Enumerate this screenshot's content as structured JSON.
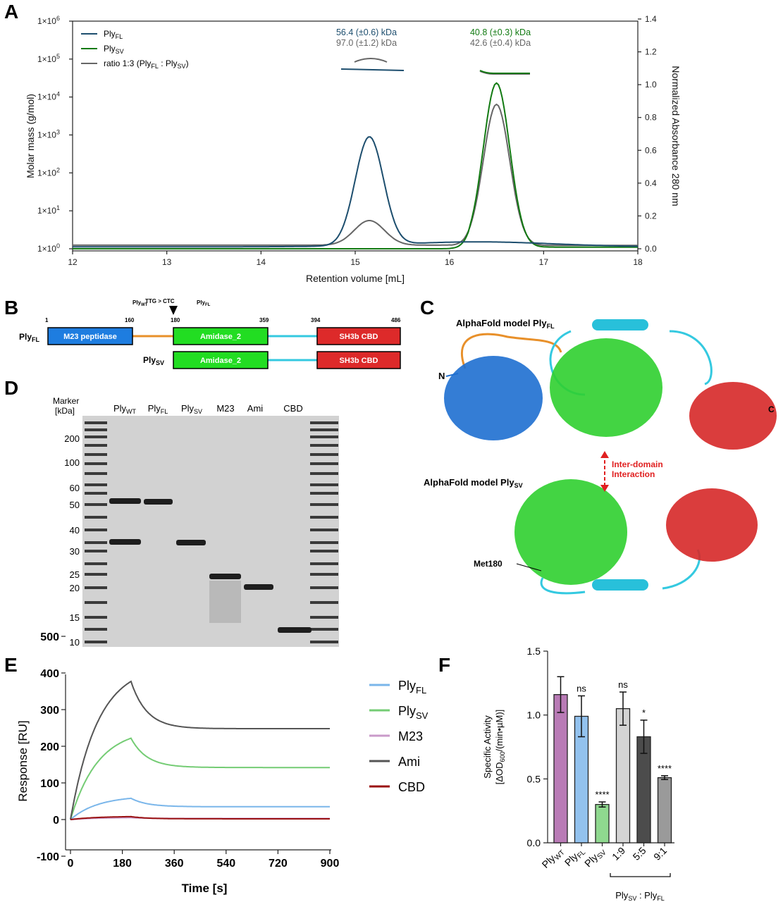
{
  "panel_labels": {
    "a": "A",
    "b": "B",
    "c": "C",
    "d": "D",
    "e": "E",
    "f": "F"
  },
  "panelA": {
    "xlabel": "Retention volume [mL]",
    "ylabel_left": "Molar mass (g/mol)",
    "ylabel_right": "Normalized Absorbance 280 nm",
    "x_ticks": [
      "12",
      "13",
      "14",
      "15",
      "16",
      "17",
      "18"
    ],
    "y_left_ticks": [
      "1×10",
      "1×10",
      "1×10",
      "1×10",
      "1×10",
      "1×10",
      "1×10"
    ],
    "y_left_exps": [
      "0",
      "1",
      "2",
      "3",
      "4",
      "5",
      "6"
    ],
    "y_right_ticks": [
      "0.0",
      "0.2",
      "0.4",
      "0.6",
      "0.8",
      "1.0",
      "1.2",
      "1.4"
    ],
    "legend": [
      {
        "name": "Ply",
        "sub": "FL",
        "color": "#1d4e6e"
      },
      {
        "name": "Ply",
        "sub": "SV",
        "color": "#127a12"
      },
      {
        "name": "ratio 1:3 (Ply",
        "sub": "FL",
        "mid": " : Ply",
        "sub2": "SV",
        "end": ")",
        "color": "#666666"
      }
    ],
    "annotations": {
      "peak1_fl": "56.4 (±0.6) kDa",
      "peak1_ratio": "97.0 (±1.2) kDa",
      "peak2_sv": "40.8 (±0.3) kDa",
      "peak2_ratio": "42.6 (±0.4) kDa"
    },
    "colors": {
      "fl": "#1d4e6e",
      "sv": "#127a12",
      "ratio": "#666666"
    }
  },
  "panelB": {
    "row1_label": "Ply",
    "row1_sub": "FL",
    "row2_label": "Ply",
    "row2_sub": "SV",
    "mutation": {
      "left": "Ply",
      "left_sub": "WT",
      "middle": "TTG > CTC",
      "right": "Ply",
      "right_sub": "FL"
    },
    "positions": [
      "1",
      "160",
      "180",
      "359",
      "394",
      "486"
    ],
    "domains": [
      {
        "label": "M23 peptidase",
        "color": "#1e7de0"
      },
      {
        "label": "Amidase_2",
        "color": "#22dd22"
      },
      {
        "label": "SH3b CBD",
        "color": "#dd2a2a"
      }
    ],
    "linker_colors": {
      "first": "#e8902a",
      "second": "#34c9e0"
    }
  },
  "panelC": {
    "title_fl": "AlphaFold model Ply",
    "title_fl_sub": "FL",
    "title_sv": "AlphaFold model Ply",
    "title_sv_sub": "SV",
    "n_term": "N",
    "c_term": "C",
    "interaction_line1": "Inter-domain",
    "interaction_line2": "Interaction",
    "met_label": "Met180"
  },
  "panelD": {
    "marker_header1": "Marker",
    "marker_header2": "[kDa]",
    "marker_values": [
      "200",
      "100",
      "60",
      "50",
      "40",
      "30",
      "25",
      "20",
      "15",
      "10"
    ],
    "lanes": [
      {
        "name": "Ply",
        "sub": "WT"
      },
      {
        "name": "Ply",
        "sub": "FL"
      },
      {
        "name": "Ply",
        "sub": "SV"
      },
      {
        "name": "M23",
        "sub": ""
      },
      {
        "name": "Ami",
        "sub": ""
      },
      {
        "name": "CBD",
        "sub": ""
      }
    ]
  },
  "panelE": {
    "xlabel": "Time [s]",
    "ylabel": "Response [RU]",
    "x_ticks": [
      "0",
      "180",
      "360",
      "540",
      "720",
      "900"
    ],
    "y_ticks": [
      "-100",
      "0",
      "100",
      "200",
      "300",
      "400",
      "500"
    ],
    "legend": [
      {
        "name": "Ply",
        "sub": "FL",
        "color": "#7ab6ea"
      },
      {
        "name": "Ply",
        "sub": "SV",
        "color": "#74cc74"
      },
      {
        "name": "M23",
        "sub": "",
        "color": "#c99ac9"
      },
      {
        "name": "Ami",
        "sub": "",
        "color": "#555555"
      },
      {
        "name": "CBD",
        "sub": "",
        "color": "#9a1111"
      }
    ]
  },
  "panelF": {
    "ylabel_line1": "Specific Activity",
    "ylabel_line2": "[ΔOD",
    "ylabel_sub": "600",
    "ylabel_end": "/(min•µM)]",
    "y_ticks": [
      "0.0",
      "0.5",
      "1.0",
      "1.5"
    ],
    "categories": [
      {
        "name": "Ply",
        "sub": "WT"
      },
      {
        "name": "Ply",
        "sub": "FL"
      },
      {
        "name": "Ply",
        "sub": "SV"
      },
      {
        "name": "1:9",
        "sub": ""
      },
      {
        "name": "5:5",
        "sub": ""
      },
      {
        "name": "9:1",
        "sub": ""
      }
    ],
    "bracket_label": "Ply",
    "bracket_sub1": "SV",
    "bracket_mid": " : Ply",
    "bracket_sub2": "FL",
    "sig": [
      "",
      "ns",
      "****",
      "ns",
      "*",
      "****"
    ]
  },
  "chart_data": [
    {
      "type": "line",
      "panel": "A",
      "xlabel": "Retention volume [mL]",
      "ylabel": "Normalized Absorbance 280 nm",
      "xlim": [
        12,
        18
      ],
      "ylim": [
        0,
        1.4
      ],
      "peaks": [
        {
          "series": "PlyFL",
          "x": 15.15,
          "height": 0.66
        },
        {
          "series": "PlyFL",
          "x": 16.5,
          "height": 0.0
        },
        {
          "series": "PlySV",
          "x": 16.5,
          "height": 1.0
        },
        {
          "series": "ratio 1:3",
          "x": 15.15,
          "height": 0.15
        },
        {
          "series": "ratio 1:3",
          "x": 16.5,
          "height": 0.86
        }
      ]
    },
    {
      "type": "line",
      "panel": "E",
      "xlabel": "Time [s]",
      "ylabel": "Response [RU]",
      "xlim": [
        -10,
        900
      ],
      "ylim": [
        -100,
        500
      ],
      "series": [
        {
          "name": "Ply_FL",
          "peak_t": 210,
          "peak": 58,
          "plateau": 35
        },
        {
          "name": "Ply_SV",
          "peak_t": 210,
          "peak": 222,
          "plateau": 142
        },
        {
          "name": "M23",
          "peak_t": 210,
          "peak": 5,
          "plateau": 3
        },
        {
          "name": "Ami",
          "peak_t": 210,
          "peak": 377,
          "plateau": 248
        },
        {
          "name": "CBD",
          "peak_t": 210,
          "peak": 8,
          "plateau": 2
        }
      ]
    },
    {
      "type": "bar",
      "panel": "F",
      "ylabel": "Specific Activity [ΔOD600/(min•µM)]",
      "ylim": [
        0,
        1.5
      ],
      "categories": [
        "PlyWT",
        "PlyFL",
        "PlySV",
        "1:9",
        "5:5",
        "9:1"
      ],
      "values": [
        1.16,
        0.99,
        0.3,
        1.05,
        0.83,
        0.51
      ],
      "errors": [
        0.14,
        0.16,
        0.02,
        0.13,
        0.13,
        0.015
      ],
      "colors": [
        "#b97bb6",
        "#93c2ee",
        "#8fd88f",
        "#d4d4d4",
        "#4c4c4c",
        "#9a9a9a"
      ]
    }
  ]
}
